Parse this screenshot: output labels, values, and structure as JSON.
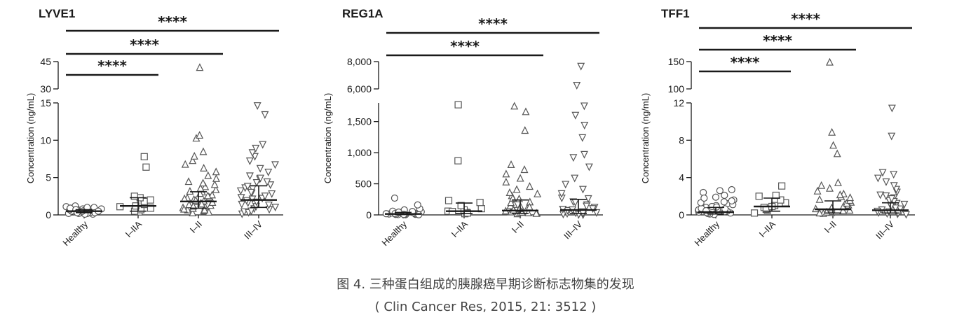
{
  "caption": {
    "line1": "图 4. 三种蛋白组成的胰腺癌早期诊断标志物集的发现",
    "line2": "( Clin Cancer Res, 2015, 21: 3512 )"
  },
  "colors": {
    "ink": "#1a1a1a",
    "marker": "#555555"
  },
  "chart_data": [
    {
      "type": "scatter",
      "title": "LYVE1",
      "ylabel": "Concentration (ng/mL)",
      "categories": [
        "Healthy",
        "I–IIA",
        "I–II",
        "III–IV"
      ],
      "markers": [
        "circle",
        "square",
        "triangle-up",
        "triangle-down"
      ],
      "axis": {
        "lower": {
          "ylim": [
            0,
            15
          ],
          "ticks": [
            0,
            5,
            10,
            15
          ],
          "tick_labels": [
            "0",
            "5",
            "10",
            "15"
          ]
        },
        "upper": {
          "ylim": [
            30,
            45
          ],
          "ticks": [
            30,
            45
          ],
          "tick_labels": [
            "30",
            "45"
          ]
        }
      },
      "summary": [
        {
          "median": 0.5,
          "low": 0.3,
          "high": 0.7
        },
        {
          "median": 1.2,
          "low": 0.5,
          "high": 2.3
        },
        {
          "median": 1.8,
          "low": 0.9,
          "high": 3.1
        },
        {
          "median": 2.0,
          "low": 1.0,
          "high": 3.9
        }
      ],
      "points": [
        [
          0.1,
          0.2,
          0.3,
          0.4,
          0.5,
          0.6,
          0.7,
          0.8,
          0.9,
          1.0,
          1.1,
          1.2,
          0.3,
          0.5,
          0.7,
          0.2,
          0.4,
          0.6,
          0.8,
          0.9,
          0.3,
          0.5,
          0.4,
          0.6,
          0.2,
          0.7,
          1.0,
          0.1,
          0.5,
          0.3
        ],
        [
          0.4,
          0.7,
          0.9,
          1.1,
          1.4,
          1.8,
          2.0,
          2.3,
          2.5,
          6.4,
          7.8,
          0.5,
          1.2
        ],
        [
          0.2,
          0.4,
          0.6,
          0.8,
          1.0,
          1.2,
          1.5,
          1.8,
          2.0,
          2.3,
          2.6,
          3.0,
          3.3,
          3.7,
          4.0,
          4.4,
          4.8,
          5.2,
          5.7,
          6.2,
          6.7,
          7.2,
          7.8,
          8.4,
          10.2,
          10.6,
          41.5,
          0.5,
          0.9,
          1.3,
          1.7,
          2.2,
          2.8,
          3.5,
          0.3,
          0.7,
          1.1,
          1.6,
          2.1,
          2.5,
          0.6,
          1.4,
          1.9,
          3.1,
          4.2
        ],
        [
          0.2,
          0.5,
          0.8,
          1.1,
          1.4,
          1.7,
          2.0,
          2.3,
          2.6,
          3.0,
          3.3,
          3.7,
          4.1,
          4.5,
          4.9,
          5.3,
          5.8,
          6.3,
          6.8,
          7.3,
          7.9,
          8.4,
          9.0,
          9.5,
          13.5,
          14.7,
          0.4,
          0.9,
          1.5,
          2.2,
          2.9,
          3.6,
          4.4,
          5.0,
          0.6,
          1.2,
          1.8,
          2.4,
          3.1,
          3.9
        ]
      ],
      "significance": [
        {
          "from": "Healthy",
          "to": "I–IIA",
          "label": "****"
        },
        {
          "from": "Healthy",
          "to": "I–II",
          "label": "****"
        },
        {
          "from": "Healthy",
          "to": "III–IV",
          "label": "****"
        }
      ]
    },
    {
      "type": "scatter",
      "title": "REG1A",
      "ylabel": "Concentration (ng/mL)",
      "categories": [
        "Healthy",
        "I–IIA",
        "I–II",
        "III–IV"
      ],
      "markers": [
        "circle",
        "square",
        "triangle-up",
        "triangle-down"
      ],
      "axis": {
        "lower": {
          "ylim": [
            0,
            1800
          ],
          "ticks": [
            0,
            500,
            1000,
            1500
          ],
          "tick_labels": [
            "0",
            "500",
            "1,000",
            "1,500"
          ]
        },
        "upper": {
          "ylim": [
            6000,
            8000
          ],
          "ticks": [
            6000,
            8000
          ],
          "tick_labels": [
            "6,000",
            "8,000"
          ]
        }
      },
      "summary": [
        {
          "median": 15,
          "low": 5,
          "high": 40
        },
        {
          "median": 60,
          "low": 20,
          "high": 190
        },
        {
          "median": 70,
          "low": 25,
          "high": 240
        },
        {
          "median": 80,
          "low": 25,
          "high": 250
        }
      ],
      "points": [
        [
          2,
          5,
          8,
          10,
          15,
          20,
          25,
          30,
          40,
          50,
          60,
          80,
          100,
          160,
          270,
          5,
          10,
          12,
          18,
          22,
          35,
          45,
          55,
          3,
          7
        ],
        [
          20,
          40,
          60,
          80,
          100,
          150,
          200,
          230,
          870,
          1770,
          30,
          55
        ],
        [
          10,
          20,
          30,
          40,
          60,
          80,
          100,
          130,
          160,
          200,
          250,
          300,
          350,
          400,
          450,
          520,
          580,
          650,
          720,
          800,
          1350,
          1650,
          1740,
          15,
          35,
          55,
          90,
          140,
          190,
          260,
          330,
          25,
          70,
          120
        ],
        [
          10,
          20,
          30,
          40,
          60,
          80,
          100,
          130,
          170,
          220,
          280,
          350,
          420,
          500,
          600,
          780,
          930,
          980,
          1250,
          1450,
          1610,
          1760,
          6300,
          7700,
          15,
          45,
          90,
          150,
          210,
          270,
          35,
          110
        ]
      ],
      "significance": [
        {
          "from": "Healthy",
          "to": "I–II",
          "label": "****"
        },
        {
          "from": "Healthy",
          "to": "III–IV",
          "label": "****"
        }
      ]
    },
    {
      "type": "scatter",
      "title": "TFF1",
      "ylabel": "Concentration (ng/mL)",
      "categories": [
        "Healthy",
        "I–IIA",
        "I–II",
        "III–IV"
      ],
      "markers": [
        "circle",
        "square",
        "triangle-up",
        "triangle-down"
      ],
      "axis": {
        "lower": {
          "ylim": [
            0,
            12
          ],
          "ticks": [
            0,
            4,
            8,
            12
          ],
          "tick_labels": [
            "0",
            "4",
            "8",
            "12"
          ]
        },
        "upper": {
          "ylim": [
            100,
            150
          ],
          "ticks": [
            100,
            150
          ],
          "tick_labels": [
            "100",
            "150"
          ]
        }
      },
      "summary": [
        {
          "median": 0.3,
          "low": 0.1,
          "high": 0.8
        },
        {
          "median": 0.9,
          "low": 0.4,
          "high": 1.8
        },
        {
          "median": 0.6,
          "low": 0.2,
          "high": 1.5
        },
        {
          "median": 0.5,
          "low": 0.2,
          "high": 1.3
        }
      ],
      "points": [
        [
          0.05,
          0.1,
          0.2,
          0.3,
          0.4,
          0.5,
          0.6,
          0.8,
          1.0,
          1.2,
          1.4,
          1.6,
          1.9,
          2.1,
          2.4,
          2.6,
          2.7,
          0.15,
          0.35,
          0.55,
          0.7,
          0.9,
          1.1,
          1.3,
          0.25,
          0.45,
          0.65,
          0.85,
          1.5,
          1.8
        ],
        [
          0.2,
          0.5,
          0.8,
          1.0,
          1.3,
          1.6,
          2.0,
          2.1,
          3.1,
          0.6,
          0.9
        ],
        [
          0.1,
          0.2,
          0.3,
          0.5,
          0.7,
          0.9,
          1.1,
          1.3,
          1.6,
          1.9,
          2.2,
          2.5,
          2.8,
          3.1,
          3.4,
          6.5,
          7.4,
          8.8,
          148,
          0.15,
          0.4,
          0.6,
          0.8,
          1.0,
          1.2,
          1.5,
          1.8,
          2.1,
          0.25,
          0.45
        ],
        [
          0.1,
          0.2,
          0.3,
          0.5,
          0.7,
          0.9,
          1.1,
          1.3,
          1.6,
          1.9,
          2.2,
          2.5,
          2.8,
          3.2,
          3.6,
          4.0,
          4.4,
          4.6,
          8.5,
          11.5,
          0.15,
          0.4,
          0.6,
          0.8,
          1.0,
          1.2,
          1.5,
          1.8,
          2.1,
          0.25,
          0.45
        ]
      ],
      "significance": [
        {
          "from": "Healthy",
          "to": "I–IIA",
          "label": "****"
        },
        {
          "from": "Healthy",
          "to": "I–II",
          "label": "****"
        },
        {
          "from": "Healthy",
          "to": "III–IV",
          "label": "****"
        }
      ]
    }
  ]
}
